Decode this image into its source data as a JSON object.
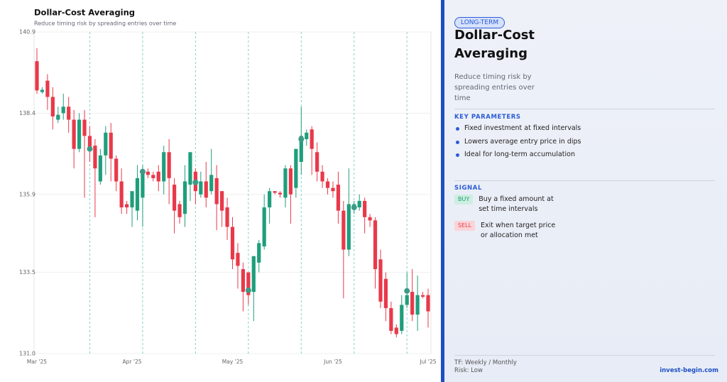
{
  "chart_data": {
    "type": "candlestick",
    "title": "Dollar-Cost Averaging",
    "subtitle": "Reduce timing risk by spreading entries over time",
    "categories": [
      "Mar '25",
      null,
      null,
      null,
      null,
      null,
      null,
      null,
      null,
      null,
      null,
      null,
      null,
      null,
      null,
      null,
      null,
      null,
      "Apr '25",
      null,
      null,
      null,
      null,
      null,
      null,
      null,
      null,
      null,
      null,
      null,
      null,
      null,
      null,
      null,
      null,
      null,
      null,
      "May '25",
      null,
      null,
      null,
      null,
      null,
      null,
      null,
      null,
      null,
      null,
      null,
      null,
      null,
      null,
      null,
      null,
      null,
      null,
      "Jun '25",
      null,
      null,
      null,
      null,
      null,
      null,
      null,
      null,
      null,
      null,
      null,
      null,
      null,
      null,
      null,
      null,
      null,
      "Jul '25"
    ],
    "open": [
      140.0,
      139.05,
      139.4,
      138.9,
      138.2,
      138.4,
      138.6,
      138.2,
      137.3,
      138.2,
      137.7,
      137.4,
      136.3,
      137.1,
      137.8,
      137.0,
      136.3,
      135.6,
      135.5,
      135.4,
      135.8,
      136.6,
      136.5,
      136.6,
      136.3,
      137.2,
      136.2,
      135.6,
      135.3,
      136.2,
      136.6,
      135.9,
      136.3,
      136.0,
      136.4,
      136.0,
      135.5,
      134.9,
      134.1,
      133.6,
      133.5,
      132.9,
      133.8,
      134.3,
      135.5,
      136.0,
      135.95,
      135.8,
      136.7,
      136.1,
      136.9,
      137.6,
      137.9,
      137.2,
      136.6,
      136.3,
      136.1,
      136.2,
      135.4,
      134.2,
      135.5,
      135.5,
      135.7,
      135.2,
      135.1,
      133.9,
      133.3,
      132.4,
      131.8,
      131.7,
      132.5,
      132.9,
      132.2,
      132.8,
      132.8
    ],
    "high": [
      140.4,
      139.2,
      139.6,
      139.2,
      138.6,
      139.0,
      138.9,
      138.5,
      138.4,
      138.5,
      138.0,
      137.6,
      137.3,
      138.0,
      138.1,
      137.1,
      136.7,
      135.7,
      136.0,
      136.8,
      136.8,
      136.7,
      136.6,
      136.8,
      137.4,
      137.6,
      136.4,
      135.7,
      136.8,
      137.2,
      136.7,
      136.6,
      136.9,
      137.3,
      136.8,
      136.0,
      135.8,
      135.2,
      134.4,
      133.8,
      133.5,
      134.0,
      134.5,
      135.9,
      136.1,
      136.0,
      136.0,
      136.8,
      136.8,
      137.3,
      138.6,
      137.9,
      138.0,
      137.5,
      136.8,
      136.4,
      136.3,
      136.6,
      135.7,
      136.7,
      135.7,
      135.9,
      135.8,
      135.3,
      135.2,
      134.2,
      133.5,
      132.6,
      131.9,
      132.8,
      133.5,
      133.6,
      133.4,
      132.9,
      133.0
    ],
    "low": [
      139.0,
      139.0,
      138.5,
      137.9,
      138.1,
      138.2,
      137.8,
      136.7,
      137.2,
      135.8,
      136.9,
      135.2,
      136.2,
      136.5,
      136.3,
      136.0,
      135.3,
      135.3,
      134.9,
      135.1,
      134.9,
      136.4,
      136.3,
      136.0,
      135.9,
      135.6,
      134.7,
      135.0,
      134.9,
      135.7,
      135.6,
      135.8,
      135.5,
      135.9,
      134.8,
      134.9,
      134.5,
      133.6,
      133.0,
      132.3,
      132.5,
      132.0,
      133.5,
      134.2,
      135.0,
      135.9,
      135.8,
      135.5,
      135.0,
      135.8,
      136.5,
      137.4,
      136.5,
      136.3,
      136.1,
      135.9,
      135.8,
      135.0,
      132.7,
      134.0,
      135.3,
      135.4,
      134.7,
      134.9,
      133.0,
      132.4,
      132.0,
      131.6,
      131.5,
      131.6,
      132.4,
      132.0,
      131.7,
      132.7,
      131.8
    ],
    "close": [
      139.1,
      139.12,
      138.9,
      138.3,
      138.35,
      138.6,
      138.2,
      137.3,
      138.2,
      137.7,
      137.3,
      136.7,
      137.1,
      137.8,
      137.0,
      136.3,
      135.5,
      135.5,
      136.0,
      136.4,
      136.6,
      136.5,
      136.4,
      136.3,
      137.2,
      136.4,
      135.4,
      135.2,
      136.3,
      137.2,
      136.0,
      136.3,
      135.8,
      136.5,
      135.6,
      135.4,
      134.9,
      133.9,
      133.7,
      132.9,
      132.8,
      134.0,
      134.4,
      135.5,
      136.0,
      135.95,
      135.9,
      136.7,
      135.9,
      137.3,
      137.7,
      137.8,
      137.3,
      136.6,
      136.3,
      136.1,
      136.0,
      135.4,
      134.2,
      135.6,
      135.6,
      135.7,
      135.2,
      135.1,
      133.6,
      132.6,
      132.4,
      131.7,
      131.6,
      132.5,
      132.8,
      132.2,
      132.8,
      132.75,
      132.3
    ],
    "up_color": "#1f9e7c",
    "down_color": "#e8394a",
    "dca_entries": {
      "color": "#3d9a86",
      "line_color": "#7fd3c9",
      "values": [
        null,
        null,
        null,
        null,
        null,
        null,
        null,
        null,
        null,
        null,
        137.3,
        null,
        null,
        null,
        null,
        null,
        null,
        null,
        null,
        null,
        136.6,
        null,
        null,
        null,
        null,
        null,
        null,
        null,
        null,
        null,
        136.27,
        null,
        null,
        null,
        null,
        null,
        null,
        null,
        null,
        null,
        132.95,
        null,
        null,
        null,
        null,
        null,
        null,
        null,
        null,
        null,
        137.6,
        null,
        null,
        null,
        null,
        null,
        null,
        null,
        null,
        null,
        135.5,
        null,
        null,
        null,
        null,
        null,
        null,
        null,
        null,
        null,
        132.93,
        null,
        null,
        null,
        null
      ]
    },
    "ylim": [
      131,
      140.9
    ],
    "yticks": [
      {
        "value": 131,
        "label": "131.0"
      },
      133.5,
      135.9,
      138.4,
      140.9
    ],
    "grid": true
  },
  "panel": {
    "badge": "LONG-TERM",
    "title": "Dollar-Cost Averaging",
    "description": "Reduce timing risk by spreading entries over time",
    "key_parameters_heading": "KEY PARAMETERS",
    "key_parameters": [
      "Fixed investment at fixed intervals",
      "Lowers average entry price in dips",
      "Ideal for long-term accumulation"
    ],
    "signal_heading": "SIGNAL",
    "signals": [
      {
        "tag": "BUY",
        "text": "Buy a fixed amount at set time intervals"
      },
      {
        "tag": "SELL",
        "text": "Exit when target price or allocation met"
      }
    ],
    "footer": {
      "timeframe": "TF: Weekly / Monthly",
      "risk": "Risk: Low",
      "brand": "invest-begin.com"
    }
  }
}
